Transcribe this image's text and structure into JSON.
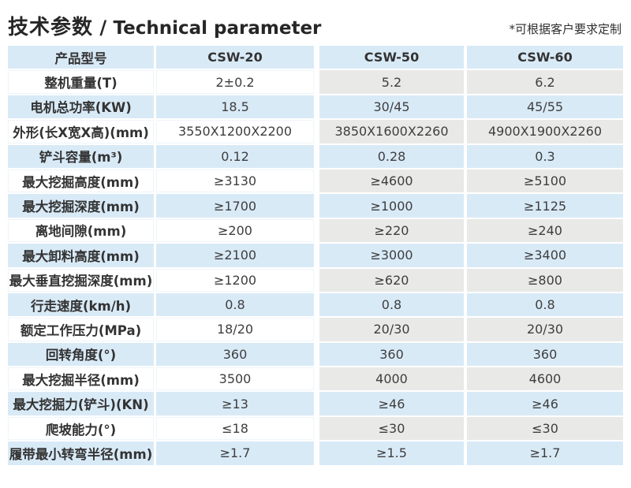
{
  "header": {
    "title_zh": "技术参数",
    "title_sep": " / ",
    "title_en": "Technical parameter",
    "note": "*可根据客户要求定制"
  },
  "colors": {
    "row_blue": "#d9eaf7",
    "row_gray": "#e9e9e7",
    "row_white": "#ffffff",
    "text": "#3e3e3e",
    "title_text": "#262626"
  },
  "table": {
    "header_label": "产品型号",
    "models": [
      "CSW-20",
      "CSW-50",
      "CSW-60"
    ],
    "rows": [
      {
        "label": "整机重量(T)",
        "csw20": "2±0.2",
        "csw50": "5.2",
        "csw60": "6.2"
      },
      {
        "label": "电机总功率(KW)",
        "csw20": "18.5",
        "csw50": "30/45",
        "csw60": "45/55"
      },
      {
        "label": "外形(长X宽X高)(mm)",
        "csw20": "3550X1200X2200",
        "csw50": "3850X1600X2260",
        "csw60": "4900X1900X2260"
      },
      {
        "label": "铲斗容量(m³)",
        "csw20": "0.12",
        "csw50": "0.28",
        "csw60": "0.3"
      },
      {
        "label": "最大挖掘高度(mm)",
        "csw20": "≥3130",
        "csw50": "≥4600",
        "csw60": "≥5100"
      },
      {
        "label": "最大挖掘深度(mm)",
        "csw20": "≥1700",
        "csw50": "≥1000",
        "csw60": "≥1125"
      },
      {
        "label": "离地间隙(mm)",
        "csw20": "≥200",
        "csw50": "≥220",
        "csw60": "≥240"
      },
      {
        "label": "最大卸料高度(mm)",
        "csw20": "≥2100",
        "csw50": "≥3000",
        "csw60": "≥3400"
      },
      {
        "label": "最大垂直挖掘深度(mm)",
        "csw20": "≥1200",
        "csw50": "≥620",
        "csw60": "≥800"
      },
      {
        "label": "行走速度(km/h)",
        "csw20": "0.8",
        "csw50": "0.8",
        "csw60": "0.8"
      },
      {
        "label": "额定工作压力(MPa)",
        "csw20": "18/20",
        "csw50": "20/30",
        "csw60": "20/30"
      },
      {
        "label": "回转角度(°)",
        "csw20": "360",
        "csw50": "360",
        "csw60": "360"
      },
      {
        "label": "最大挖掘半径(mm)",
        "csw20": "3500",
        "csw50": "4000",
        "csw60": "4600"
      },
      {
        "label": "最大挖掘力(铲斗)(KN)",
        "csw20": "≥13",
        "csw50": "≥46",
        "csw60": "≥46"
      },
      {
        "label": "爬坡能力(°)",
        "csw20": "≤18",
        "csw50": "≤30",
        "csw60": "≤30"
      },
      {
        "label": "履带最小转弯半径(mm)",
        "csw20": "≥1.7",
        "csw50": "≥1.5",
        "csw60": "≥1.7"
      }
    ]
  }
}
